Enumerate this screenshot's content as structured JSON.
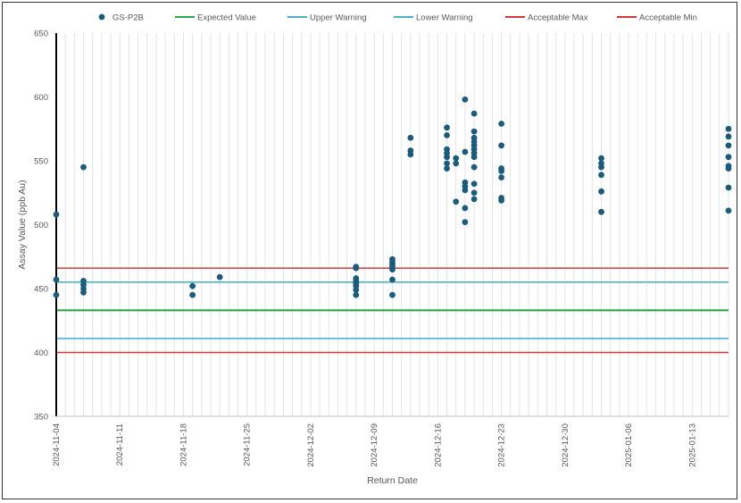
{
  "chart_data": {
    "type": "scatter",
    "xlabel": "Return Date",
    "ylabel": "Assay Value (ppb Au)",
    "ylim": [
      350,
      650
    ],
    "y_ticks": [
      350,
      400,
      450,
      500,
      550,
      600,
      650
    ],
    "x_range": [
      "2024-11-04",
      "2025-01-17"
    ],
    "x_ticks": [
      "2024-11-04",
      "2024-11-11",
      "2024-11-18",
      "2024-11-25",
      "2024-12-02",
      "2024-12-09",
      "2024-12-16",
      "2024-12-23",
      "2024-12-30",
      "2025-01-06",
      "2025-01-13"
    ],
    "grid": "vertical-daily",
    "legend_position": "top",
    "legend": [
      "GS-P2B",
      "Expected Value",
      "Upper Warning",
      "Lower Warning",
      "Acceptable Max",
      "Acceptable Min"
    ],
    "lines": [
      {
        "name": "Expected Value",
        "value": 433,
        "color": "#2ea84a"
      },
      {
        "name": "Upper Warning",
        "value": 455,
        "color": "#4fb3c8"
      },
      {
        "name": "Lower Warning",
        "value": 411,
        "color": "#4fb3c8"
      },
      {
        "name": "Acceptable Max",
        "value": 466,
        "color": "#d23a3a"
      },
      {
        "name": "Acceptable Min",
        "value": 400,
        "color": "#d23a3a"
      }
    ],
    "series": [
      {
        "name": "GS-P2B",
        "color": "#1c5c7a",
        "points": [
          [
            "2024-11-04",
            508
          ],
          [
            "2024-11-04",
            457
          ],
          [
            "2024-11-04",
            445
          ],
          [
            "2024-11-07",
            545
          ],
          [
            "2024-11-07",
            456
          ],
          [
            "2024-11-07",
            453
          ],
          [
            "2024-11-07",
            450
          ],
          [
            "2024-11-07",
            447
          ],
          [
            "2024-11-19",
            452
          ],
          [
            "2024-11-19",
            445
          ],
          [
            "2024-11-22",
            459
          ],
          [
            "2024-12-07",
            467
          ],
          [
            "2024-12-07",
            466
          ],
          [
            "2024-12-07",
            458
          ],
          [
            "2024-12-07",
            456
          ],
          [
            "2024-12-07",
            454
          ],
          [
            "2024-12-07",
            452
          ],
          [
            "2024-12-07",
            449
          ],
          [
            "2024-12-07",
            445
          ],
          [
            "2024-12-11",
            473
          ],
          [
            "2024-12-11",
            471
          ],
          [
            "2024-12-11",
            469
          ],
          [
            "2024-12-11",
            467
          ],
          [
            "2024-12-11",
            465
          ],
          [
            "2024-12-11",
            457
          ],
          [
            "2024-12-11",
            445
          ],
          [
            "2024-12-13",
            568
          ],
          [
            "2024-12-13",
            558
          ],
          [
            "2024-12-13",
            555
          ],
          [
            "2024-12-17",
            576
          ],
          [
            "2024-12-17",
            570
          ],
          [
            "2024-12-17",
            559
          ],
          [
            "2024-12-17",
            556
          ],
          [
            "2024-12-17",
            553
          ],
          [
            "2024-12-17",
            548
          ],
          [
            "2024-12-17",
            544
          ],
          [
            "2024-12-18",
            552
          ],
          [
            "2024-12-18",
            548
          ],
          [
            "2024-12-18",
            518
          ],
          [
            "2024-12-19",
            598
          ],
          [
            "2024-12-19",
            557
          ],
          [
            "2024-12-19",
            533
          ],
          [
            "2024-12-19",
            530
          ],
          [
            "2024-12-19",
            527
          ],
          [
            "2024-12-19",
            513
          ],
          [
            "2024-12-19",
            502
          ],
          [
            "2024-12-20",
            587
          ],
          [
            "2024-12-20",
            573
          ],
          [
            "2024-12-20",
            568
          ],
          [
            "2024-12-20",
            565
          ],
          [
            "2024-12-20",
            562
          ],
          [
            "2024-12-20",
            559
          ],
          [
            "2024-12-20",
            556
          ],
          [
            "2024-12-20",
            553
          ],
          [
            "2024-12-20",
            545
          ],
          [
            "2024-12-20",
            532
          ],
          [
            "2024-12-20",
            525
          ],
          [
            "2024-12-20",
            520
          ],
          [
            "2024-12-23",
            579
          ],
          [
            "2024-12-23",
            562
          ],
          [
            "2024-12-23",
            544
          ],
          [
            "2024-12-23",
            542
          ],
          [
            "2024-12-23",
            537
          ],
          [
            "2024-12-23",
            521
          ],
          [
            "2024-12-23",
            519
          ],
          [
            "2025-01-03",
            552
          ],
          [
            "2025-01-03",
            548
          ],
          [
            "2025-01-03",
            545
          ],
          [
            "2025-01-03",
            539
          ],
          [
            "2025-01-03",
            526
          ],
          [
            "2025-01-03",
            510
          ],
          [
            "2025-01-17",
            575
          ],
          [
            "2025-01-17",
            569
          ],
          [
            "2025-01-17",
            562
          ],
          [
            "2025-01-17",
            553
          ],
          [
            "2025-01-17",
            546
          ],
          [
            "2025-01-17",
            544
          ],
          [
            "2025-01-17",
            529
          ],
          [
            "2025-01-17",
            511
          ]
        ]
      }
    ]
  }
}
